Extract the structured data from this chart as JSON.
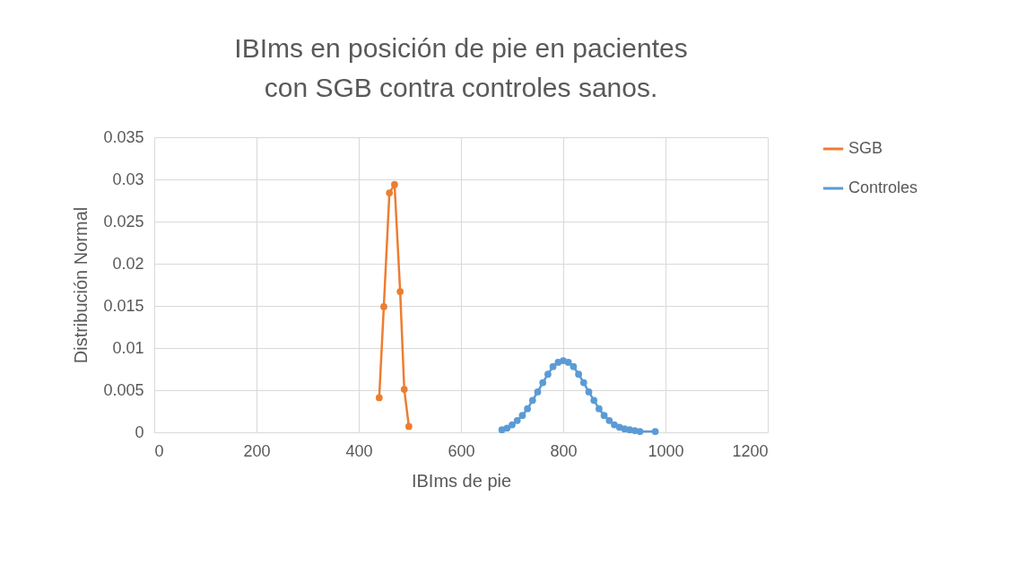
{
  "chart_data": {
    "type": "line",
    "title": "IBIms en posición de pie en pacientes con SGB contra controles sanos.",
    "xlabel": "IBIms de pie",
    "ylabel": "Distribución Normal",
    "xlim": [
      0,
      1200
    ],
    "xticks": [
      0,
      200,
      400,
      600,
      800,
      1000,
      1200
    ],
    "ylim": [
      0,
      0.035
    ],
    "yticks": [
      0,
      0.005,
      0.01,
      0.015,
      0.02,
      0.025,
      0.03,
      0.035
    ],
    "grid": true,
    "legend": "right",
    "marker": "circle",
    "line_style": "solid",
    "series": [
      {
        "name": "SGB",
        "color": "#ed7d31",
        "x": [
          440,
          449,
          460,
          470,
          481,
          489,
          498
        ],
        "values": [
          0.0041,
          0.0149,
          0.0284,
          0.0294,
          0.0167,
          0.0051,
          0.0007
        ]
      },
      {
        "name": "Controles",
        "color": "#5b9bd5",
        "x": [
          680,
          690,
          700,
          710,
          720,
          730,
          740,
          750,
          760,
          770,
          780,
          790,
          800,
          810,
          820,
          830,
          840,
          850,
          860,
          870,
          880,
          890,
          900,
          910,
          920,
          930,
          940,
          950,
          980
        ],
        "values": [
          0.0003,
          0.0005,
          0.0009,
          0.0014,
          0.002,
          0.0028,
          0.0038,
          0.0048,
          0.0059,
          0.0069,
          0.0078,
          0.0083,
          0.0085,
          0.0083,
          0.0078,
          0.0069,
          0.0059,
          0.0048,
          0.0038,
          0.0028,
          0.002,
          0.0014,
          0.0009,
          0.0006,
          0.0004,
          0.0003,
          0.0002,
          0.0001,
          0.0001
        ]
      }
    ]
  }
}
